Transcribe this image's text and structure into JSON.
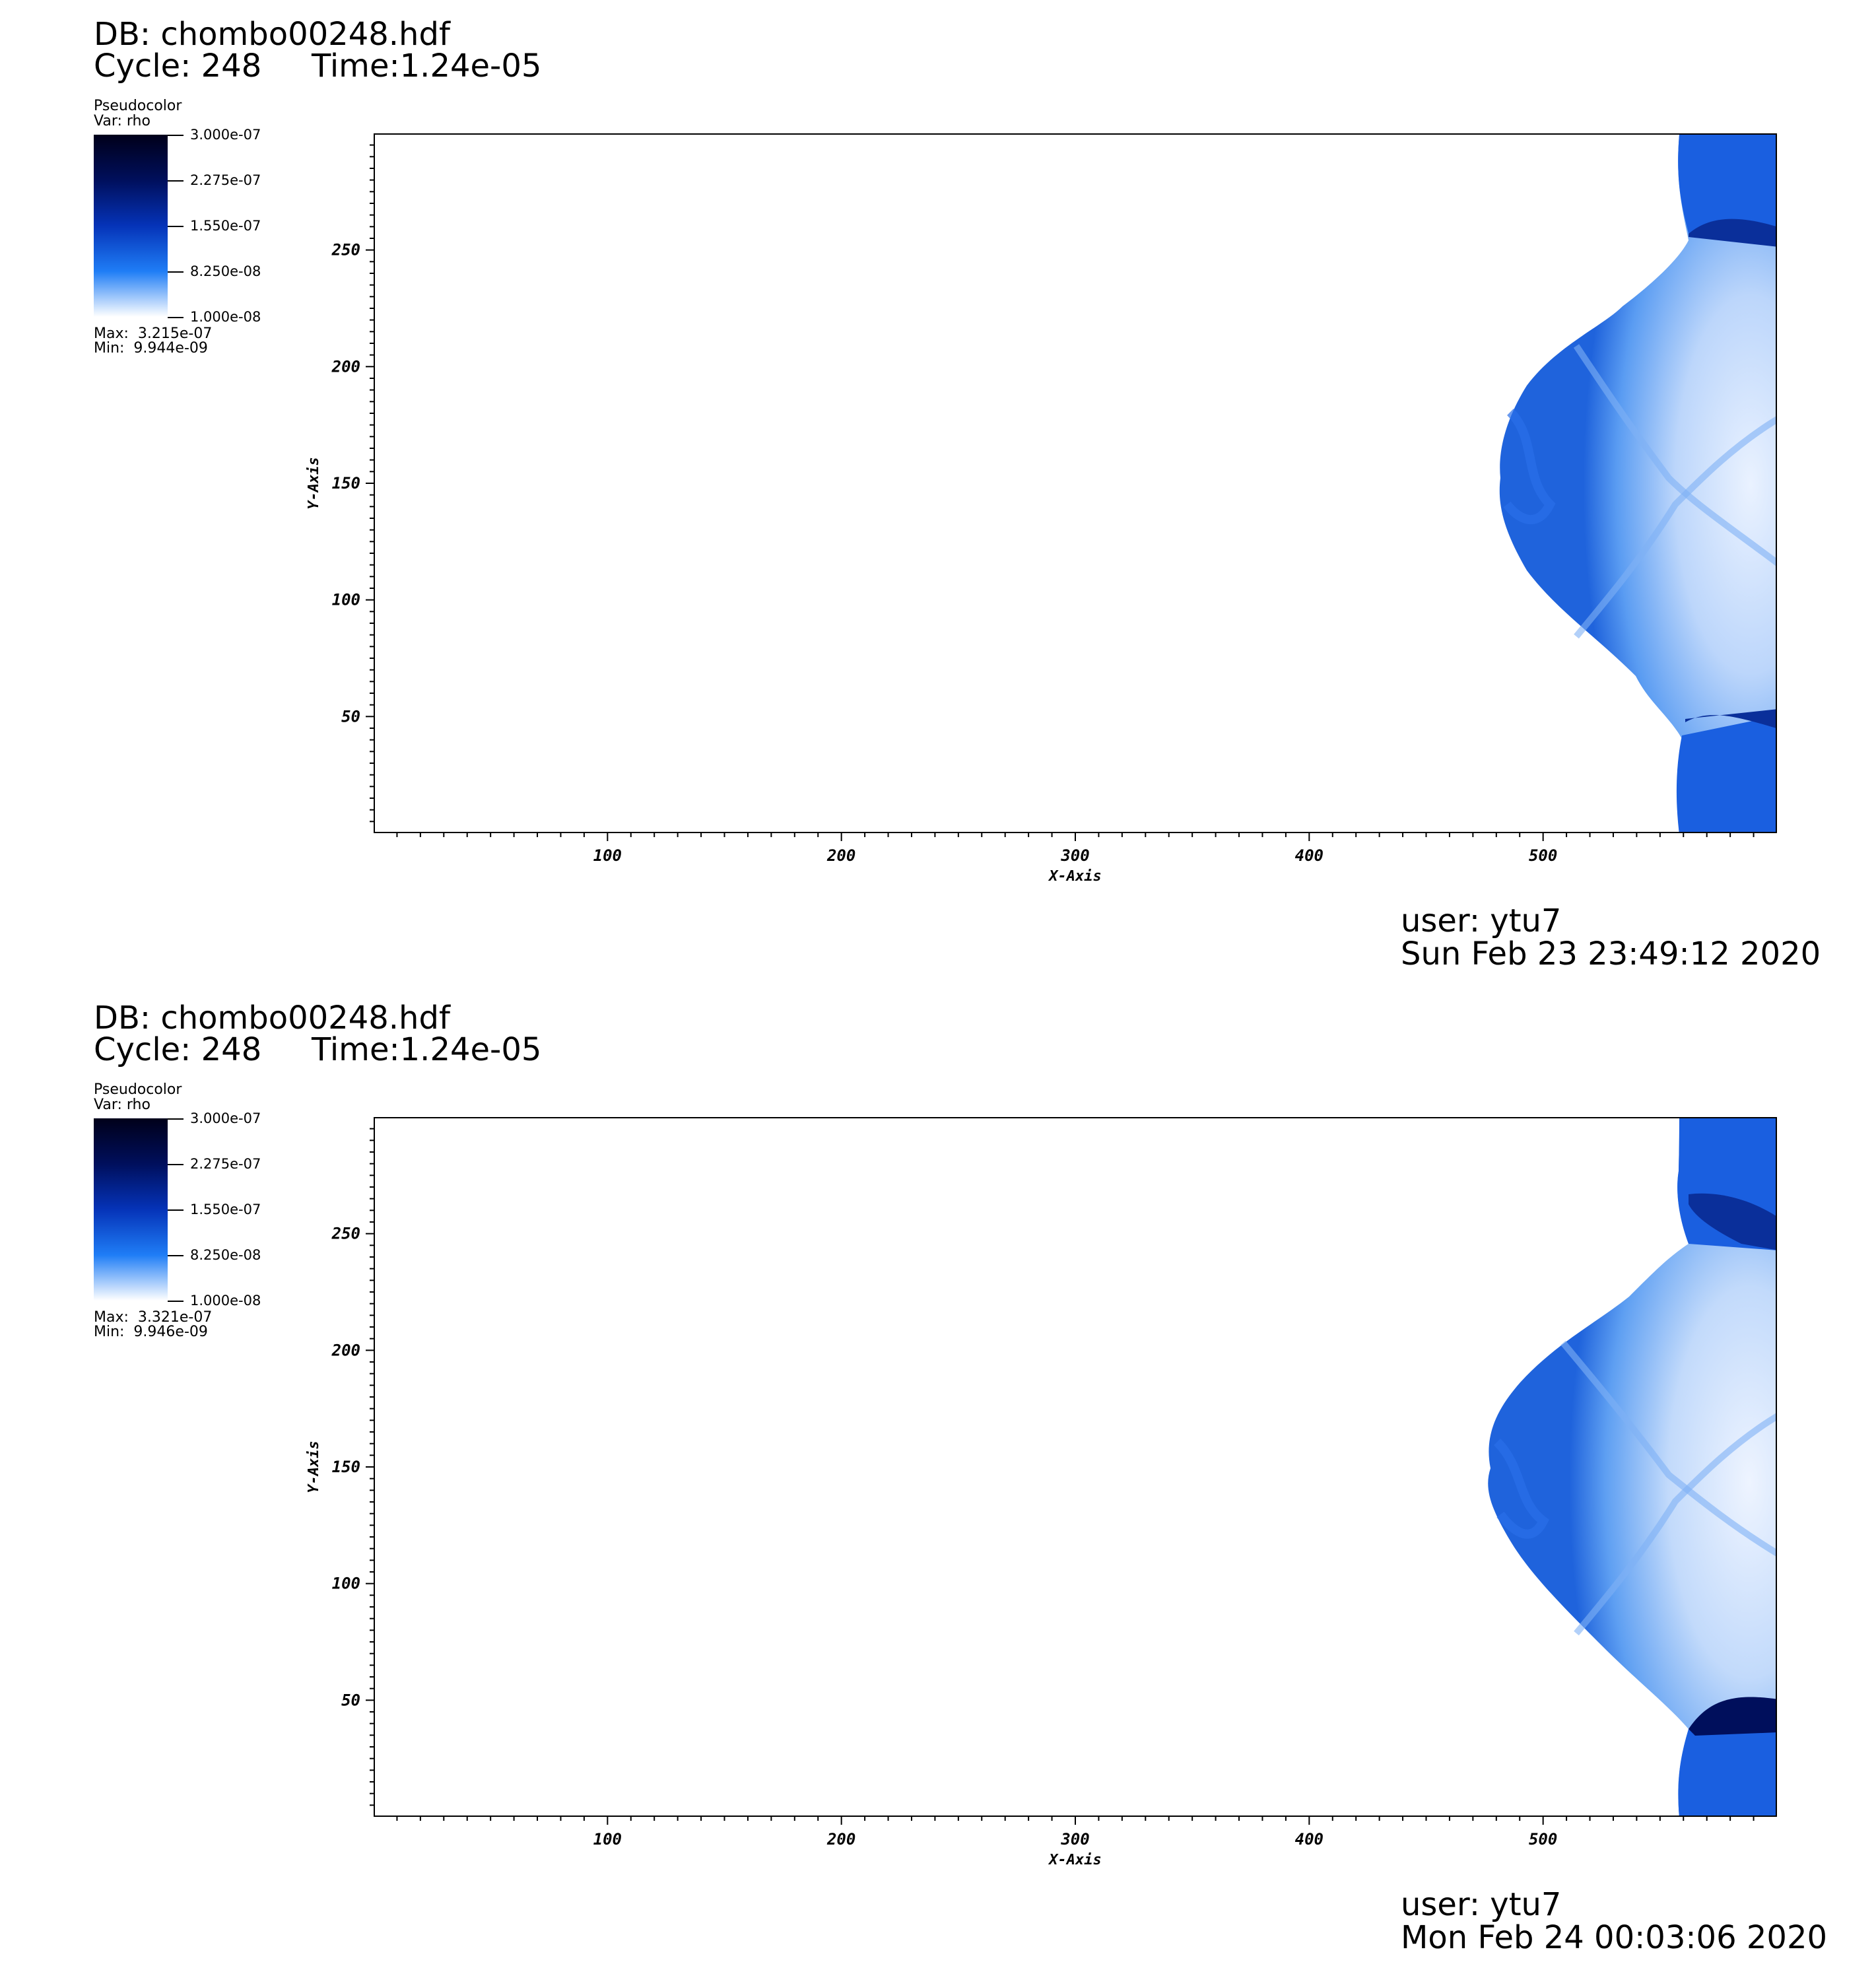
{
  "panels": [
    {
      "db": "DB: chombo00248.hdf",
      "cycle": "Cycle: 248",
      "time": "Time:1.24e-05",
      "legend": {
        "plot_type": "Pseudocolor",
        "var": "Var: rho",
        "ticks": [
          "3.000e-07",
          "2.275e-07",
          "1.550e-07",
          "8.250e-08",
          "1.000e-08"
        ],
        "max": "Max:  3.215e-07",
        "min": "Min:  9.944e-09"
      },
      "user": "user: ytu7",
      "date": "Sun Feb 23 23:49:12 2020"
    },
    {
      "db": "DB: chombo00248.hdf",
      "cycle": "Cycle: 248",
      "time": "Time:1.24e-05",
      "legend": {
        "plot_type": "Pseudocolor",
        "var": "Var: rho",
        "ticks": [
          "3.000e-07",
          "2.275e-07",
          "1.550e-07",
          "8.250e-08",
          "1.000e-08"
        ],
        "max": "Max:  3.321e-07",
        "min": "Min:  9.946e-09"
      },
      "user": "user: ytu7",
      "date": "Mon Feb 24 00:03:06 2020"
    }
  ],
  "axes": {
    "xlabel": "X-Axis",
    "ylabel": "Y-Axis",
    "xlim": [
      0,
      600
    ],
    "ylim": [
      0,
      300
    ],
    "xticks": [
      100,
      200,
      300,
      400,
      500
    ],
    "yticks": [
      50,
      100,
      150,
      200,
      250
    ]
  },
  "colors": {
    "colormap": [
      "#ffffff",
      "#1f7df6",
      "#0533b8",
      "#000f5c",
      "#00001a"
    ]
  }
}
